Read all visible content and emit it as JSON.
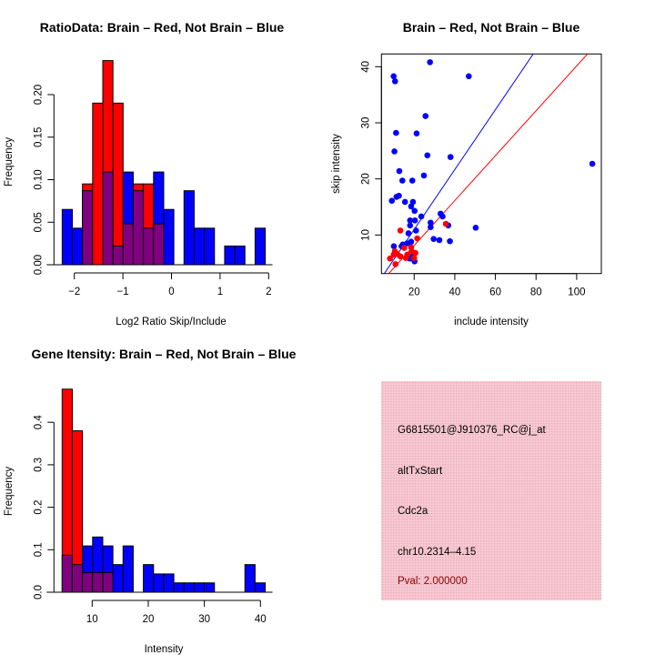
{
  "colors": {
    "red": "#ff0000",
    "blue": "#0000ff",
    "overlap": "#800080",
    "pval": "#8b0000",
    "panel": "#f5c4cd"
  },
  "chart_data": [
    {
      "type": "bar",
      "title": "RatioData: Brain – Red, Not Brain – Blue",
      "xlabel": "Log2 Ratio Skip/Include",
      "ylabel": "Frequency",
      "bin_start": -2.25,
      "bin_width": 0.209,
      "xticks": [
        -2,
        -1,
        0,
        1,
        2
      ],
      "xtick_labels": [
        "−2",
        "−1",
        "0",
        "1",
        "2"
      ],
      "yticks": [
        0,
        0.05,
        0.1,
        0.15,
        0.2
      ],
      "ytick_labels": [
        "0.00",
        "0.05",
        "0.10",
        "0.15",
        "0.20"
      ],
      "series": [
        {
          "name": "Brain",
          "color": "red",
          "values": [
            0,
            0,
            0.095,
            0.19,
            0.24,
            0.19,
            0.048,
            0.095,
            0.095,
            0.048,
            0,
            0,
            0,
            0,
            0,
            0,
            0,
            0,
            0,
            0
          ]
        },
        {
          "name": "Not Brain",
          "color": "blue",
          "values": [
            0.065,
            0.043,
            0.087,
            0,
            0.109,
            0.022,
            0.109,
            0.087,
            0.043,
            0.109,
            0.065,
            0,
            0.087,
            0.043,
            0.043,
            0,
            0.022,
            0.022,
            0,
            0.043
          ]
        }
      ]
    },
    {
      "type": "scatter",
      "title": "Brain – Red, Not Brain – Blue",
      "xlabel": "include intensity",
      "ylabel": "skip intensity",
      "xlim": [
        3.9,
        112.1
      ],
      "ylim": [
        3.1,
        42.2
      ],
      "xticks": [
        20,
        40,
        60,
        80,
        100
      ],
      "xtick_labels": [
        "20",
        "40",
        "60",
        "80",
        "100"
      ],
      "yticks": [
        10,
        20,
        30,
        40
      ],
      "ytick_labels": [
        "10",
        "20",
        "30",
        "40"
      ],
      "lines": [
        {
          "color": "blue",
          "intercept": 0.3,
          "slope": 0.534
        },
        {
          "color": "red",
          "intercept": 0.14,
          "slope": 0.4
        }
      ],
      "series": [
        {
          "name": "Not Brain",
          "color": "blue",
          "points": [
            [
              27.8,
              40.8
            ],
            [
              9.9,
              38.3
            ],
            [
              10.6,
              37.4
            ],
            [
              46.9,
              38.3
            ],
            [
              25.6,
              31.2
            ],
            [
              11.1,
              28.2
            ],
            [
              21.2,
              28.1
            ],
            [
              10.3,
              24.9
            ],
            [
              26.5,
              24.2
            ],
            [
              37.9,
              23.9
            ],
            [
              107.7,
              22.7
            ],
            [
              12.7,
              21.4
            ],
            [
              24.8,
              20.6
            ],
            [
              14.2,
              19.7
            ],
            [
              19.1,
              19.7
            ],
            [
              9.0,
              16.1
            ],
            [
              11.3,
              16.8
            ],
            [
              12.5,
              17.0
            ],
            [
              15.5,
              15.9
            ],
            [
              19.4,
              15.9
            ],
            [
              18.5,
              15.1
            ],
            [
              20.2,
              14.3
            ],
            [
              23.5,
              13.3
            ],
            [
              33.0,
              13.8
            ],
            [
              34.0,
              13.3
            ],
            [
              28.1,
              12.2
            ],
            [
              18.0,
              12.6
            ],
            [
              20.4,
              12.6
            ],
            [
              28.1,
              11.4
            ],
            [
              18.0,
              11.7
            ],
            [
              36.8,
              11.7
            ],
            [
              50.3,
              11.3
            ],
            [
              20.9,
              10.8
            ],
            [
              17.2,
              10.3
            ],
            [
              29.6,
              9.3
            ],
            [
              32.4,
              9.1
            ],
            [
              37.6,
              8.9
            ],
            [
              18.5,
              8.8
            ],
            [
              16.5,
              8.5
            ],
            [
              14.4,
              8.3
            ],
            [
              13.8,
              8.0
            ],
            [
              10.0,
              8.0
            ],
            [
              19.4,
              6.4
            ],
            [
              16.5,
              6.1
            ],
            [
              20.2,
              5.3
            ],
            [
              17.9,
              5.8
            ]
          ]
        },
        {
          "name": "Brain",
          "color": "red",
          "points": [
            [
              13.2,
              10.8
            ],
            [
              21.5,
              9.4
            ],
            [
              35.6,
              12.0
            ],
            [
              8.1,
              5.8
            ],
            [
              9.9,
              6.5
            ],
            [
              10.5,
              7.1
            ],
            [
              10.8,
              4.8
            ],
            [
              13.2,
              6.2
            ],
            [
              15.1,
              7.7
            ],
            [
              15.9,
              5.9
            ],
            [
              18.5,
              7.8
            ],
            [
              18.8,
              7.1
            ],
            [
              20.6,
              6.8
            ],
            [
              20.0,
              5.9
            ],
            [
              16.6,
              6.5
            ],
            [
              11.7,
              6.6
            ]
          ]
        }
      ]
    },
    {
      "type": "bar",
      "title": "Gene Itensity: Brain – Red, Not Brain – Blue",
      "xlabel": "Intensity",
      "ylabel": "Frequency",
      "bin_start": 4.65,
      "bin_width": 1.81,
      "xticks": [
        10,
        20,
        30,
        40
      ],
      "xtick_labels": [
        "10",
        "20",
        "30",
        "40"
      ],
      "yticks": [
        0,
        0.1,
        0.2,
        0.3,
        0.4
      ],
      "ytick_labels": [
        "0.0",
        "0.1",
        "0.2",
        "0.3",
        "0.4"
      ],
      "series": [
        {
          "name": "Brain",
          "color": "red",
          "values": [
            0.478,
            0.38,
            0.046,
            0.046,
            0.046,
            0,
            0,
            0,
            0,
            0,
            0,
            0,
            0,
            0,
            0,
            0,
            0,
            0,
            0,
            0
          ]
        },
        {
          "name": "Not Brain",
          "color": "blue",
          "values": [
            0.087,
            0.065,
            0.109,
            0.13,
            0.109,
            0.065,
            0.109,
            0,
            0.065,
            0.043,
            0.043,
            0.022,
            0.022,
            0.022,
            0.022,
            0,
            0,
            0,
            0.065,
            0.022
          ]
        }
      ]
    }
  ],
  "info_panel": {
    "probe_id": "G6815501@J910376_RC@j_at",
    "event_type": "altTxStart",
    "gene": "Cdc2a",
    "location": "chr10.2314–4.15",
    "pval": "Pval: 2.000000"
  }
}
